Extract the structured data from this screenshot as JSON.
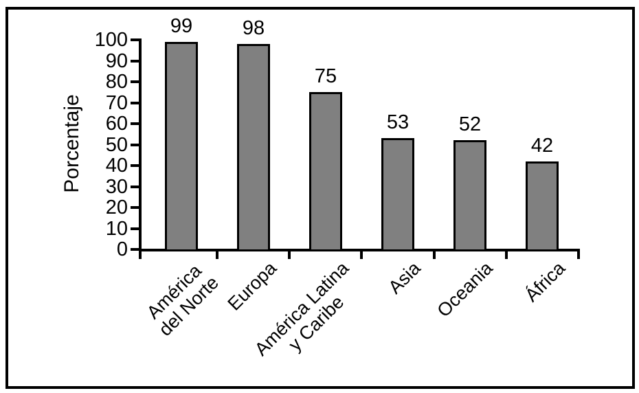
{
  "chart_data": {
    "type": "bar",
    "title": "",
    "xlabel": "",
    "ylabel": "Porcentaje",
    "categories": [
      "América del Norte",
      "Europa",
      "América Latina y Caribe",
      "Asia",
      "Oceania",
      "África"
    ],
    "category_label_lines": [
      [
        "América",
        "del Norte"
      ],
      [
        "Europa"
      ],
      [
        "América Latina",
        "y Caribe"
      ],
      [
        "Asia"
      ],
      [
        "Oceania"
      ],
      [
        "África"
      ]
    ],
    "series": [
      {
        "name": "Porcentaje",
        "values": [
          99,
          98,
          75,
          53,
          52,
          42
        ]
      }
    ],
    "bar_value_labels": [
      "99",
      "98",
      "75",
      "53",
      "52",
      "42"
    ],
    "yticks": [
      0,
      10,
      20,
      30,
      40,
      50,
      60,
      70,
      80,
      90,
      100
    ],
    "ytick_labels": [
      "0",
      "10",
      "20",
      "30",
      "40",
      "50",
      "60",
      "70",
      "80",
      "90",
      "100"
    ],
    "ylim": [
      0,
      100
    ],
    "grid": false,
    "legend_position": "none",
    "bar_fill_color": "#808080",
    "bar_border_color": "#000000",
    "frame_color": "#000000",
    "background_color": "#ffffff",
    "category_label_rotation_deg": 45
  }
}
